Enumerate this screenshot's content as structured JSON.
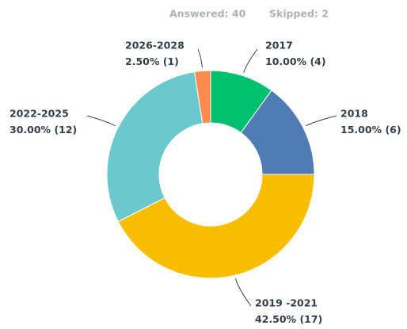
{
  "header": {
    "answered": "Answered: 40",
    "skipped": "Skipped: 2"
  },
  "chart_data": {
    "type": "donut",
    "categories": [
      "2017",
      "2018",
      "2019 -2021",
      "2022-2025",
      "2026-2028"
    ],
    "values": [
      10,
      15,
      42.5,
      30,
      2.5
    ],
    "value_labels": [
      "10.00%",
      "15.00%",
      "42.50%",
      "30.00%",
      "2.50%"
    ],
    "counts": [
      4,
      6,
      17,
      12,
      1
    ],
    "count_labels": [
      "(4)",
      "(6)",
      "(17)",
      "(12)",
      "(1)"
    ],
    "colors": [
      "#00bf6f",
      "#507cb6",
      "#f9be00",
      "#6bc8cd",
      "#ff8b4f"
    ]
  }
}
